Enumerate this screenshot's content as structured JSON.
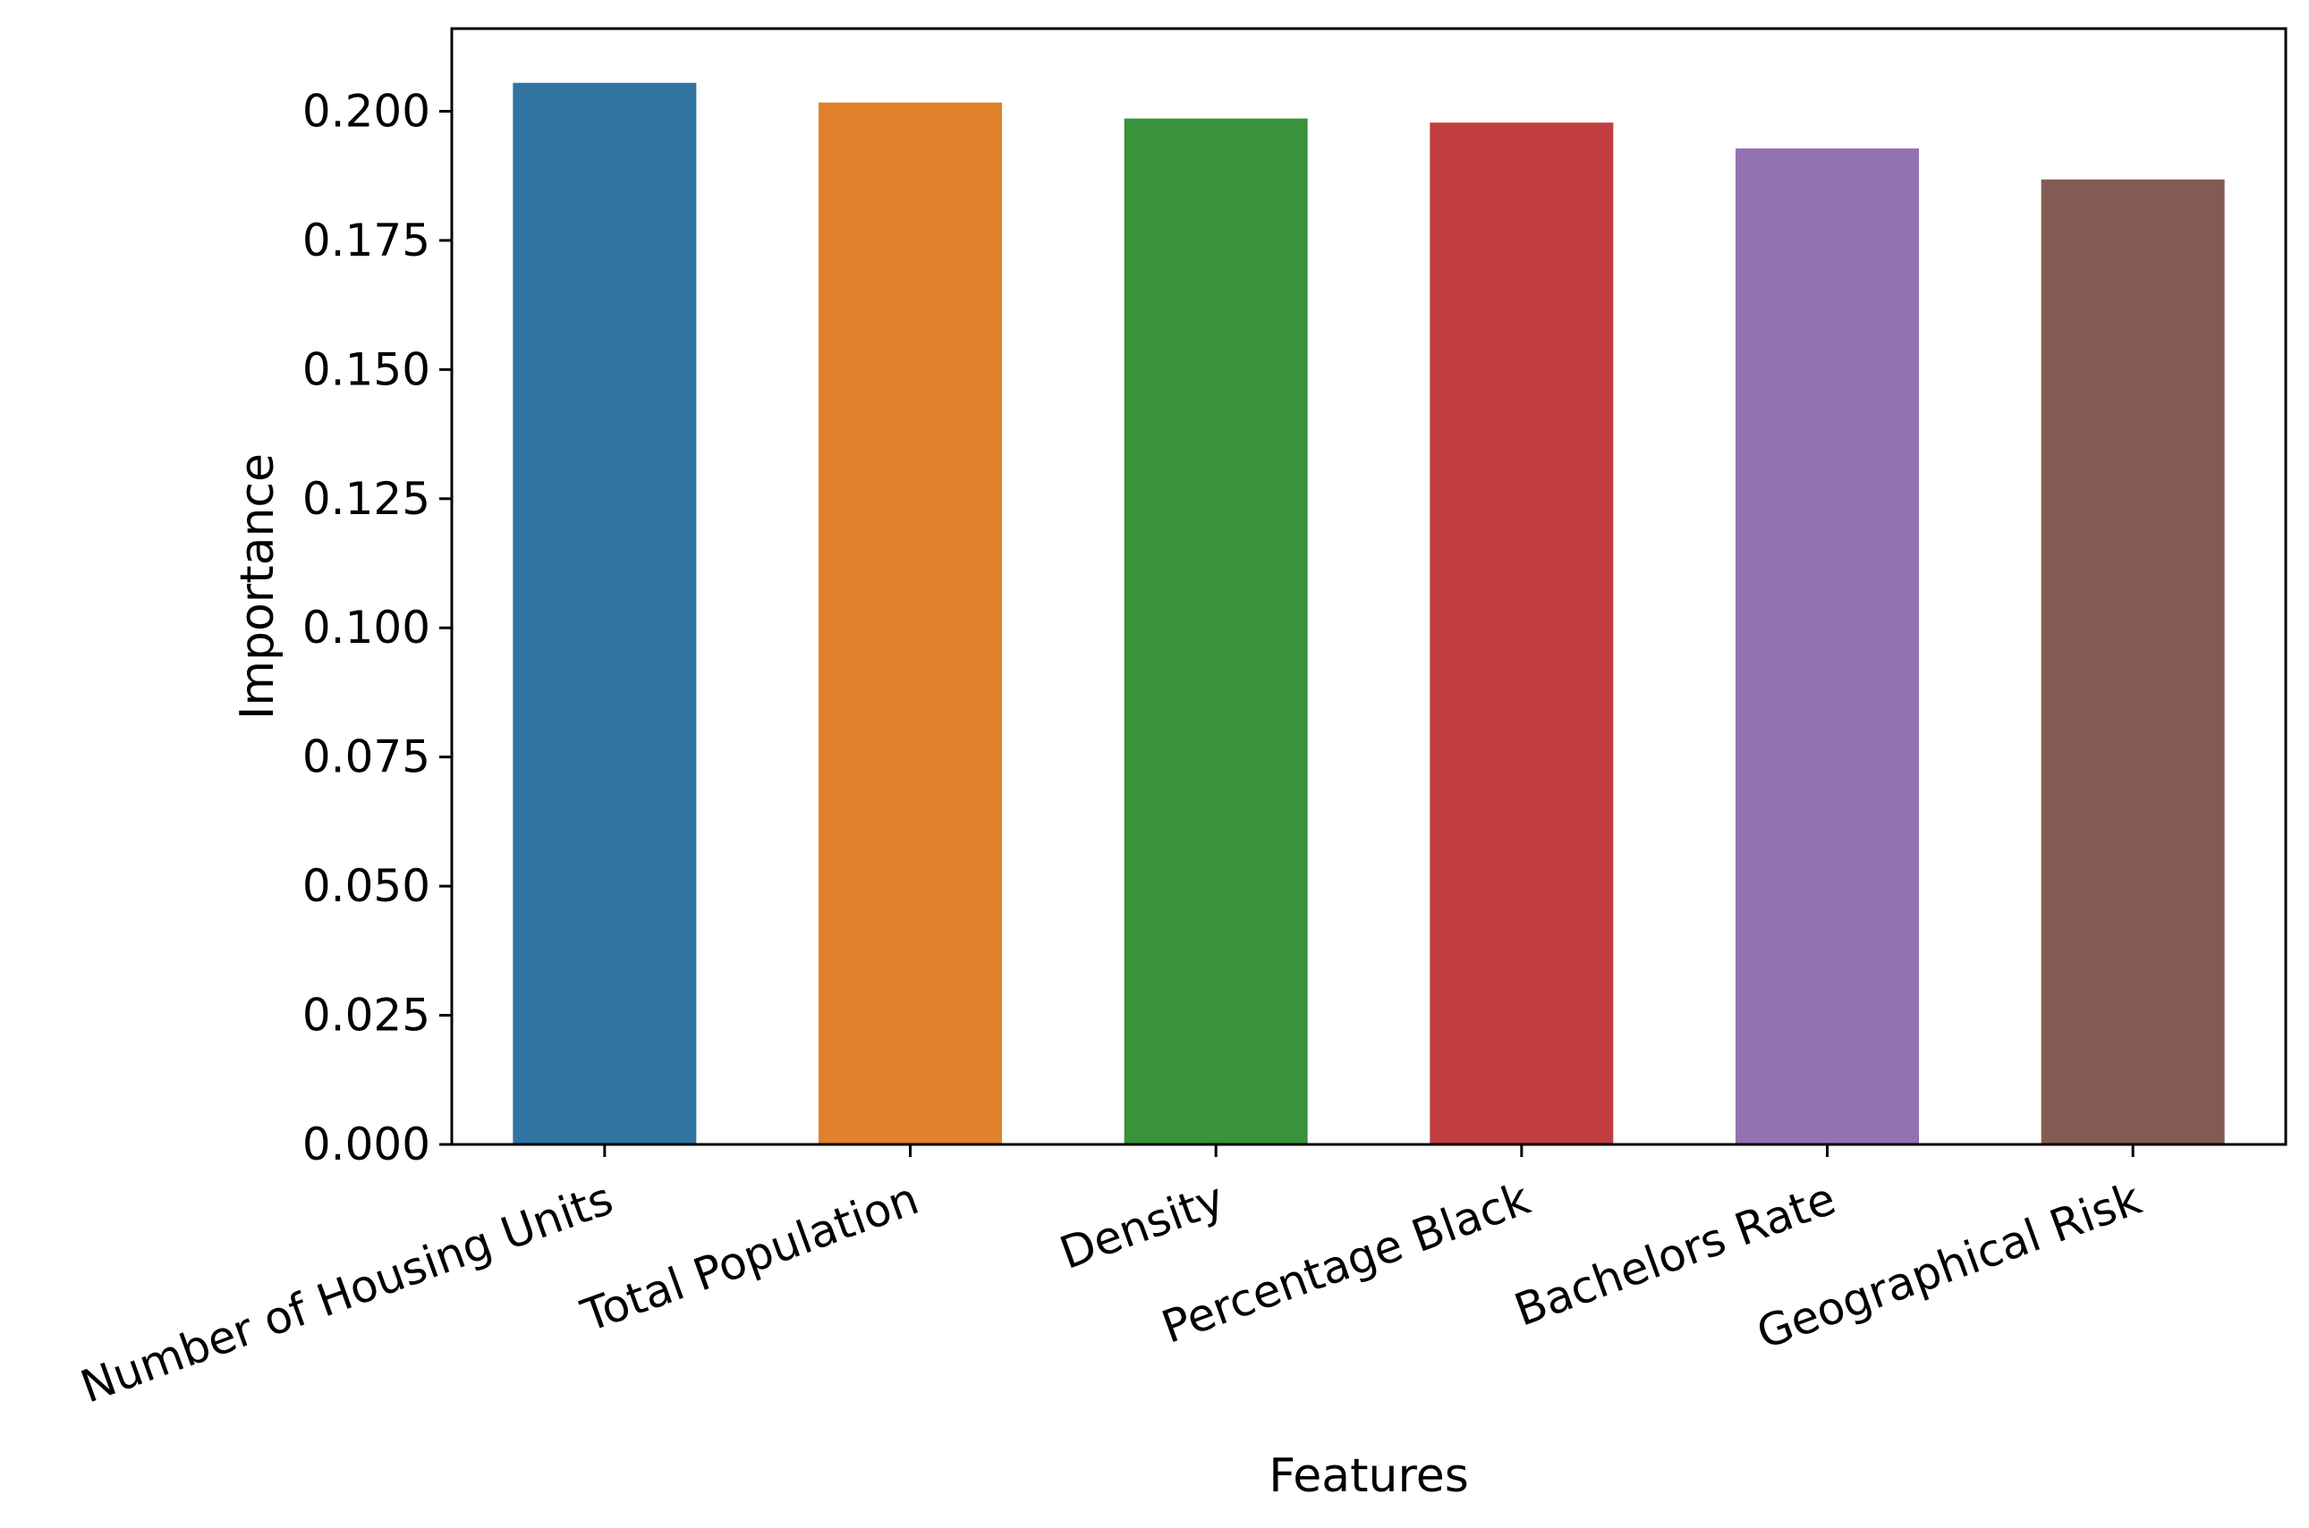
{
  "chart_data": {
    "type": "bar",
    "xlabel": "Features",
    "ylabel": "Importance",
    "categories": [
      "Number of Housing Units",
      "Total Population",
      "Density",
      "Percentage Black",
      "Bachelors Rate",
      "Geographical Risk"
    ],
    "values": [
      0.2055,
      0.2017,
      0.1986,
      0.1978,
      0.1928,
      0.1868
    ],
    "colors": [
      "#3274a1",
      "#e1812c",
      "#3a923a",
      "#c03d3e",
      "#9372b2",
      "#845b53"
    ],
    "ylim": [
      0,
      0.216
    ],
    "yticks": [
      {
        "value": 0.0,
        "label": "0.000"
      },
      {
        "value": 0.025,
        "label": "0.025"
      },
      {
        "value": 0.05,
        "label": "0.050"
      },
      {
        "value": 0.075,
        "label": "0.075"
      },
      {
        "value": 0.1,
        "label": "0.100"
      },
      {
        "value": 0.125,
        "label": "0.125"
      },
      {
        "value": 0.15,
        "label": "0.150"
      },
      {
        "value": 0.175,
        "label": "0.175"
      },
      {
        "value": 0.2,
        "label": "0.200"
      }
    ],
    "grid": false,
    "xtick_rotation": 20
  }
}
